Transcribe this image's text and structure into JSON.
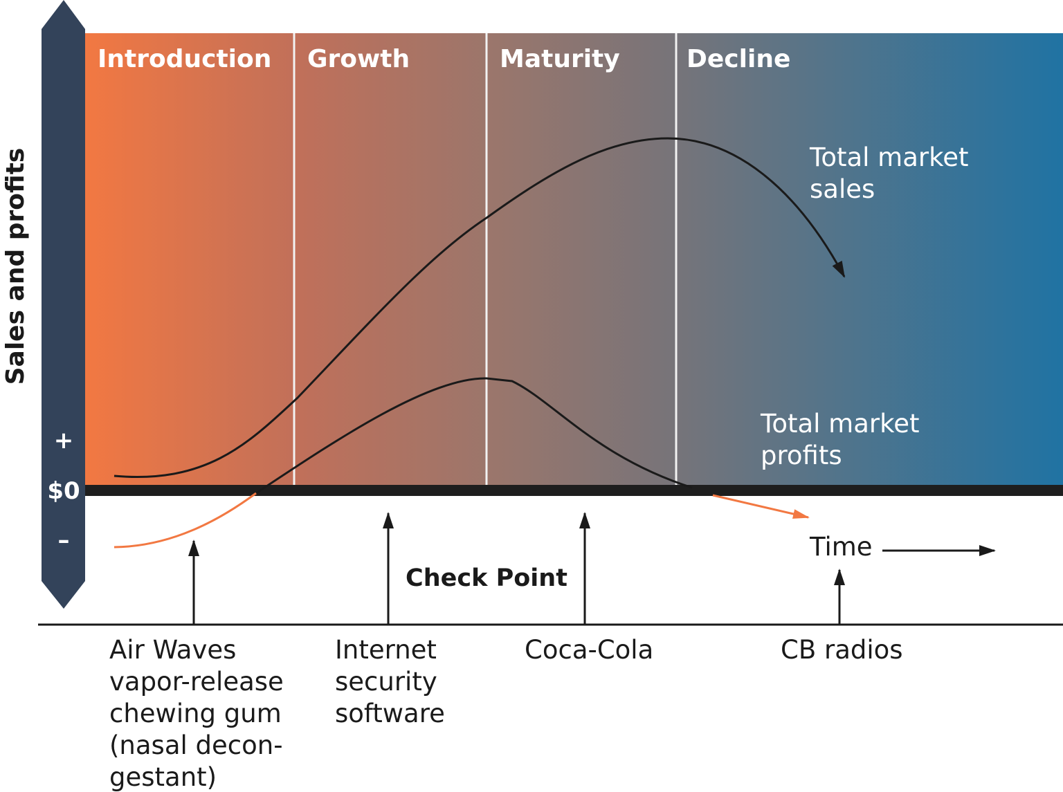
{
  "y_axis": {
    "label": "Sales and profits",
    "plus": "+",
    "zero": "$0",
    "minus": "–"
  },
  "stages": [
    "Introduction",
    "Growth",
    "Maturity",
    "Decline"
  ],
  "sales_label": [
    "Total market",
    "sales"
  ],
  "profits_label": [
    "Total market",
    "profits"
  ],
  "time_label": "Time",
  "check_point": "Check Point",
  "examples": [
    [
      "Air Waves",
      "vapor-release",
      "chewing gum",
      "(nasal decon-",
      "gestant)"
    ],
    [
      "Internet",
      "security",
      "software"
    ],
    [
      "Coca-Cola"
    ],
    [
      "CB radios"
    ]
  ]
}
